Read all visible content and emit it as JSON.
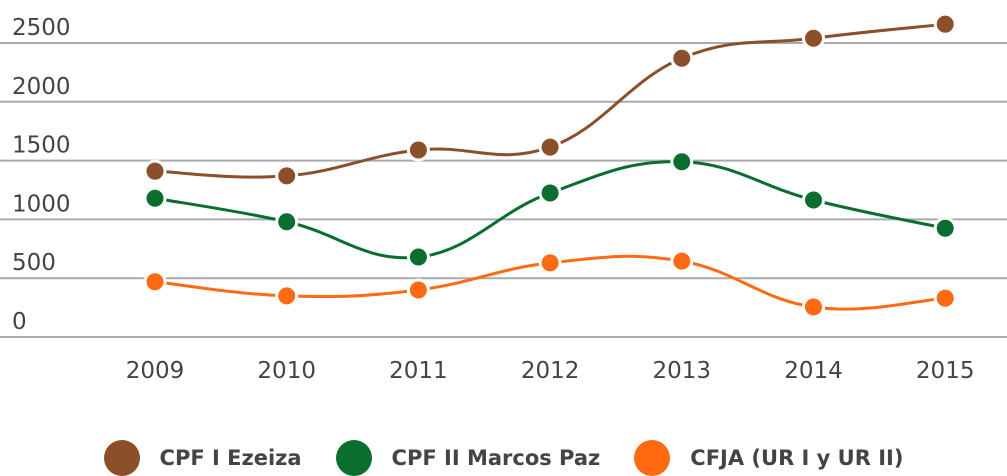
{
  "chart_data": {
    "type": "line",
    "categories": [
      "2009",
      "2010",
      "2011",
      "2012",
      "2013",
      "2014",
      "2015"
    ],
    "series": [
      {
        "name": "CPF I Ezeiza",
        "color": "#8b4f2a",
        "values": [
          1410,
          1370,
          1590,
          1615,
          2370,
          2540,
          2660
        ]
      },
      {
        "name": "CPF II Marcos Paz",
        "color": "#0a6e2e",
        "values": [
          1180,
          980,
          680,
          1225,
          1490,
          1165,
          925
        ]
      },
      {
        "name": "CFJA (UR I y UR II)",
        "color": "#ff6a13",
        "values": [
          470,
          350,
          400,
          630,
          645,
          255,
          330
        ]
      }
    ],
    "ylim": [
      0,
      2500
    ],
    "yticks": [
      0,
      500,
      1000,
      1500,
      2000,
      2500
    ],
    "grid": true,
    "legend": "bottom"
  }
}
